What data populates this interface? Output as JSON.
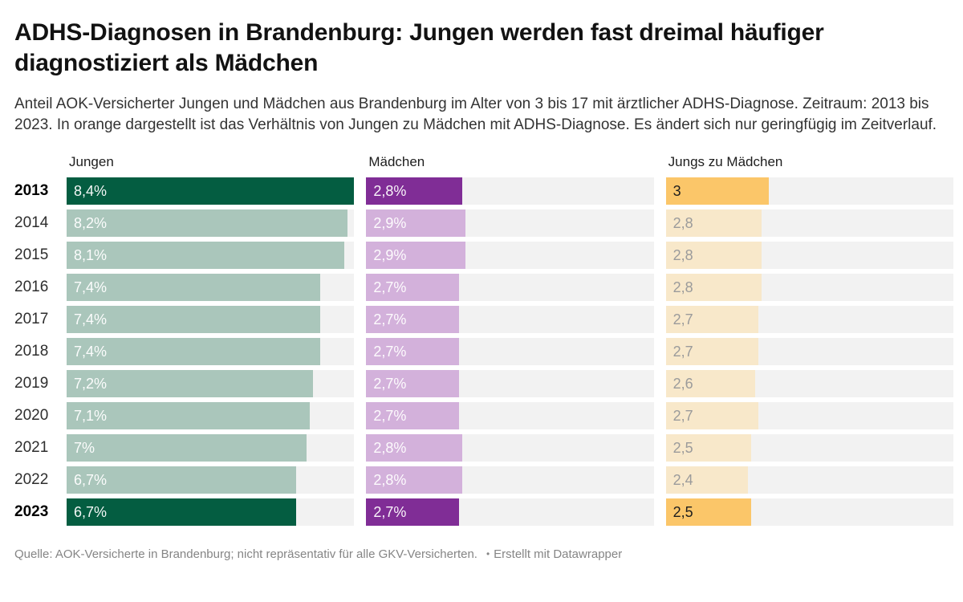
{
  "page": {
    "title": "ADHS-Diagnosen in Brandenburg: Jungen werden fast dreimal häufiger diagnostiziert als Mädchen",
    "description": "Anteil AOK-Versicherter Jungen und Mädchen aus Brandenburg im Alter von 3 bis 17 mit ärztlicher ADHS-Diagnose. Zeitraum: 2013 bis 2023. In orange dargestellt ist das Verhältnis von Jungen zu Mädchen mit ADHS-Diagnose. Es ändert sich nur geringfügig im Zeitverlauf.",
    "footer": {
      "source": "Quelle: AOK-Versicherte in Brandenburg; nicht repräsentativ für alle GKV-Versicherten.",
      "separator": "•",
      "credit": "Erstellt mit Datawrapper"
    }
  },
  "chart_data": {
    "type": "bar",
    "layout": "split-bar-table, horizontal bars per year",
    "categories": [
      "2013",
      "2014",
      "2015",
      "2016",
      "2017",
      "2018",
      "2019",
      "2020",
      "2021",
      "2022",
      "2023"
    ],
    "highlighted_categories": [
      "2013",
      "2023"
    ],
    "xmax": 8.4,
    "grid": "off",
    "track_color": "#f2f2f2",
    "columns": [
      {
        "header": "Jungen",
        "unit": "%",
        "values": [
          8.4,
          8.2,
          8.1,
          7.4,
          7.4,
          7.4,
          7.2,
          7.1,
          7.0,
          6.7,
          6.7
        ],
        "labels": [
          "8,4%",
          "8,2%",
          "8,1%",
          "7,4%",
          "7,4%",
          "7,4%",
          "7,2%",
          "7,1%",
          "7%",
          "6,7%",
          "6,7%"
        ],
        "color_highlight": "#045d41",
        "color_muted": "#aac6bb",
        "label_style": "white"
      },
      {
        "header": "Mädchen",
        "unit": "%",
        "values": [
          2.8,
          2.9,
          2.9,
          2.7,
          2.7,
          2.7,
          2.7,
          2.7,
          2.8,
          2.8,
          2.7
        ],
        "labels": [
          "2,8%",
          "2,9%",
          "2,9%",
          "2,7%",
          "2,7%",
          "2,7%",
          "2,7%",
          "2,7%",
          "2,8%",
          "2,8%",
          "2,7%"
        ],
        "color_highlight": "#802d96",
        "color_muted": "#d3b1db",
        "label_style": "white"
      },
      {
        "header": "Jungs zu Mädchen",
        "unit": "ratio",
        "values": [
          3.0,
          2.8,
          2.8,
          2.8,
          2.7,
          2.7,
          2.6,
          2.7,
          2.5,
          2.4,
          2.5
        ],
        "labels": [
          "3",
          "2,8",
          "2,8",
          "2,8",
          "2,7",
          "2,7",
          "2,6",
          "2,7",
          "2,5",
          "2,4",
          "2,5"
        ],
        "color_highlight": "#fbc669",
        "color_muted": "#f8e8ca",
        "label_style": "dark-on-highlight-muted-else"
      }
    ]
  }
}
